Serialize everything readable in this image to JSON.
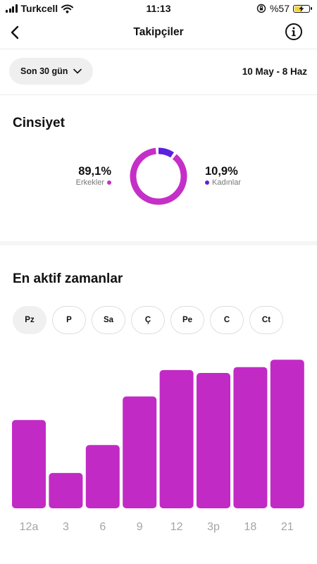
{
  "status_bar": {
    "carrier": "Turkcell",
    "time": "11:13",
    "battery_text": "%57",
    "battery_level": 0.57
  },
  "nav": {
    "title": "Takipçiler",
    "back_icon": "chevron-left-icon",
    "info_icon": "info-icon"
  },
  "filter": {
    "range_label": "Son 30 gün",
    "date_range": "10 May - 8 Haz"
  },
  "gender": {
    "title": "Cinsiyet",
    "male": {
      "percent": "89,1%",
      "label": "Erkekler",
      "value": 89.1,
      "color": "#c42fc7"
    },
    "female": {
      "percent": "10,9%",
      "label": "Kadınlar",
      "value": 10.9,
      "color": "#5a21e0"
    }
  },
  "active_times": {
    "title": "En aktif zamanlar",
    "days": [
      "Pz",
      "P",
      "Sa",
      "Ç",
      "Pe",
      "C",
      "Ct"
    ],
    "selected_day": "Pz"
  },
  "chart_data": {
    "type": "bar",
    "categories": [
      "12a",
      "3",
      "6",
      "9",
      "12",
      "3p",
      "18",
      "21"
    ],
    "values": [
      60,
      24,
      43,
      76,
      94,
      92,
      96,
      101
    ],
    "ylim": [
      0,
      104
    ],
    "bar_color": "#c22ac6",
    "grid": false
  }
}
